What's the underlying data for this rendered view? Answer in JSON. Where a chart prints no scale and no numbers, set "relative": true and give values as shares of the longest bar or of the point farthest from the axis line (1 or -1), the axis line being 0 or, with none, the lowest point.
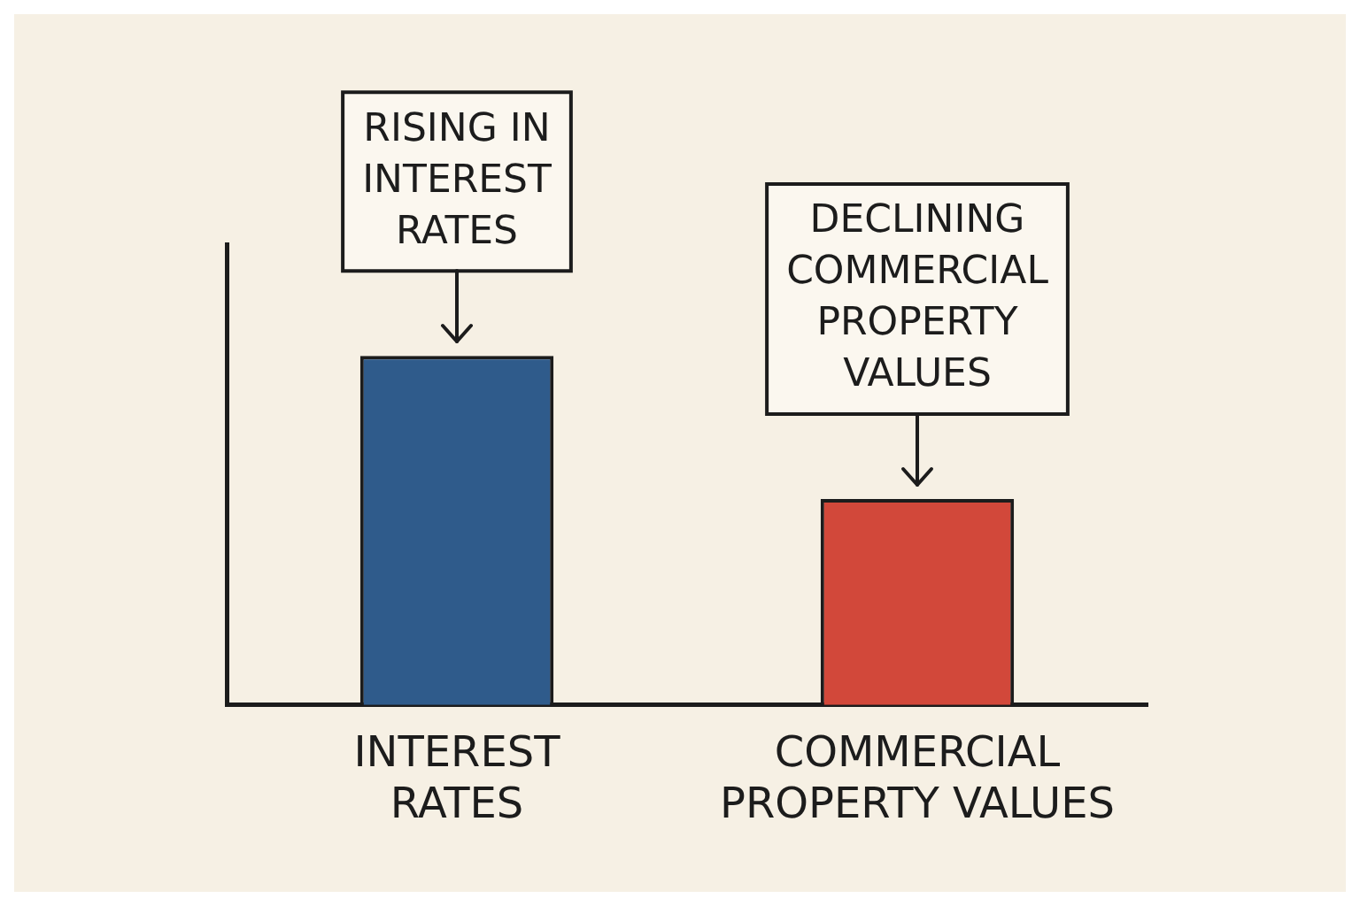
{
  "chart_data": {
    "type": "bar",
    "relative": true,
    "categories": [
      "INTEREST RATES",
      "COMMERCIAL PROPERTY VALUES"
    ],
    "colors": [
      "#2f5b8b",
      "#d2483a"
    ],
    "values": [
      1,
      0.59
    ],
    "annotations": [
      {
        "text": "RISING IN INTEREST RATES",
        "x": "INTEREST RATES",
        "y": 1
      },
      {
        "text": "DECLINING COMMERCIAL PROPERTY VALUES",
        "x": "COMMERCIAL PROPERTY VALUES",
        "y": 0.59
      }
    ]
  }
}
